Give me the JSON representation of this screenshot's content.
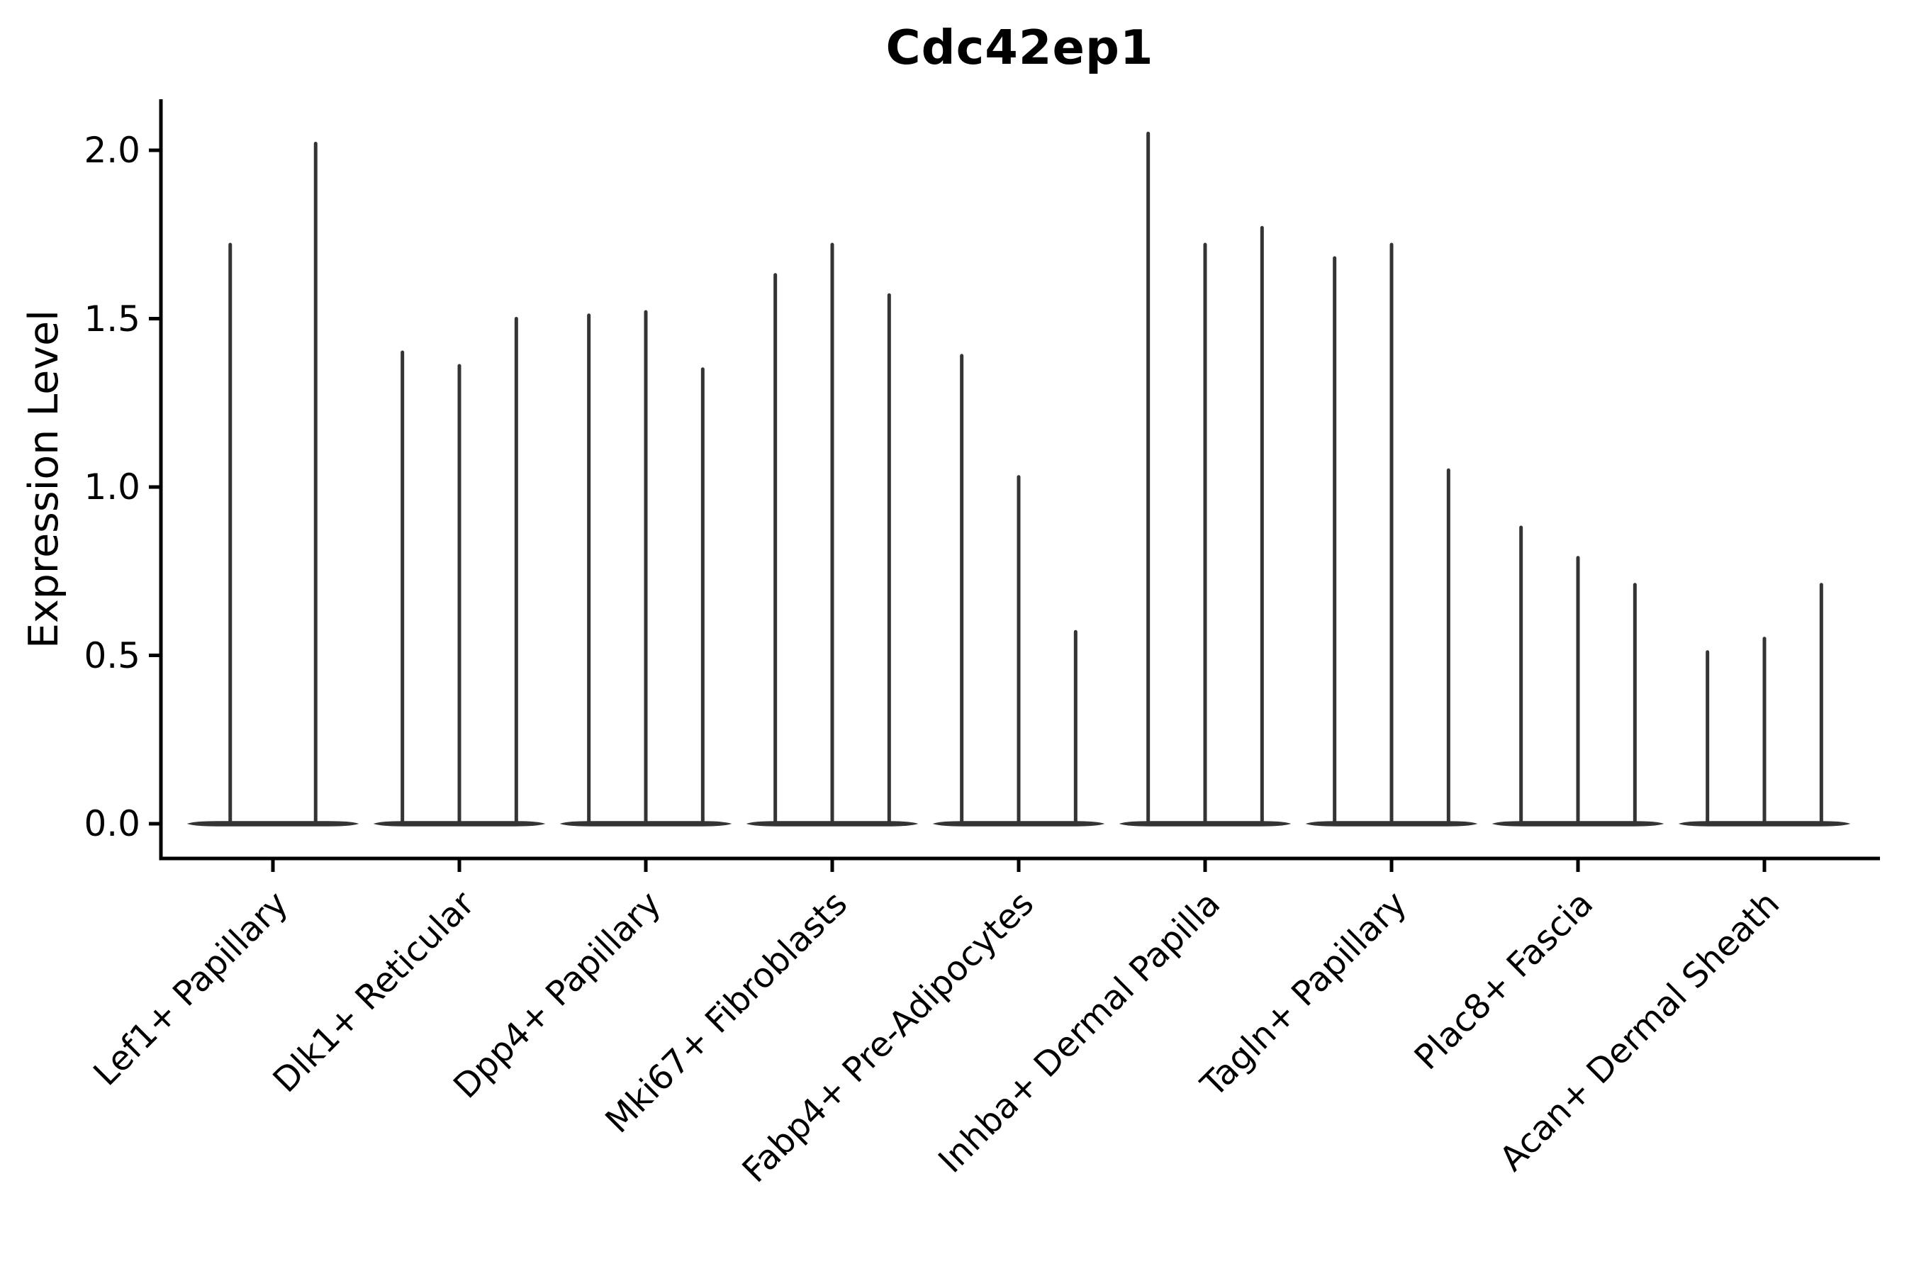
{
  "chart_data": {
    "type": "violin",
    "title": "Cdc42ep1",
    "ylabel": "Expression Level",
    "xlabel": "",
    "ylim": [
      -0.1,
      2.15
    ],
    "ytick_labels": [
      "2.0",
      "1.5",
      "1.0",
      "0.5",
      "0.0"
    ],
    "ytick_values": [
      2.0,
      1.5,
      1.0,
      0.5,
      0.0
    ],
    "grid": false,
    "legend": null,
    "categories": [
      "Lef1+ Papillary",
      "Dlk1+ Reticular",
      "Dpp4+ Papillary",
      "Mki67+ Fibroblasts",
      "Fabp4+ Pre-Adipocytes",
      "Inhba+ Dermal Papilla",
      "Tagln+ Papillary",
      "Plac8+ Fascia",
      "Acan+ Dermal Sheath"
    ],
    "groups": [
      {
        "label": "Lef1+ Papillary",
        "violin_max_values": [
          1.72,
          2.02
        ]
      },
      {
        "label": "Dlk1+ Reticular",
        "violin_max_values": [
          1.4,
          1.36,
          1.5
        ]
      },
      {
        "label": "Dpp4+ Papillary",
        "violin_max_values": [
          1.51,
          1.52,
          1.35
        ]
      },
      {
        "label": "Mki67+ Fibroblasts",
        "violin_max_values": [
          1.63,
          1.72,
          1.57
        ]
      },
      {
        "label": "Fabp4+ Pre-Adipocytes",
        "violin_max_values": [
          1.39,
          1.03,
          0.57
        ]
      },
      {
        "label": "Inhba+ Dermal Papilla",
        "violin_max_values": [
          2.05,
          1.72,
          1.77
        ]
      },
      {
        "label": "Tagln+ Papillary",
        "violin_max_values": [
          1.68,
          1.72,
          1.05
        ]
      },
      {
        "label": "Plac8+ Fascia",
        "violin_max_values": [
          0.88,
          0.79,
          0.71
        ]
      },
      {
        "label": "Acan+ Dermal Sheath",
        "violin_max_values": [
          0.51,
          0.55,
          0.71
        ]
      }
    ],
    "description": "Violin plot of single-cell expression; each cluster has narrow violins (one per sample) that are flat at 0 with a thin vertical density tail reaching the listed maximum expression value.",
    "colors": {
      "violin": "#343434",
      "axis": "#000000",
      "text": "#000000",
      "background": "#ffffff"
    }
  }
}
